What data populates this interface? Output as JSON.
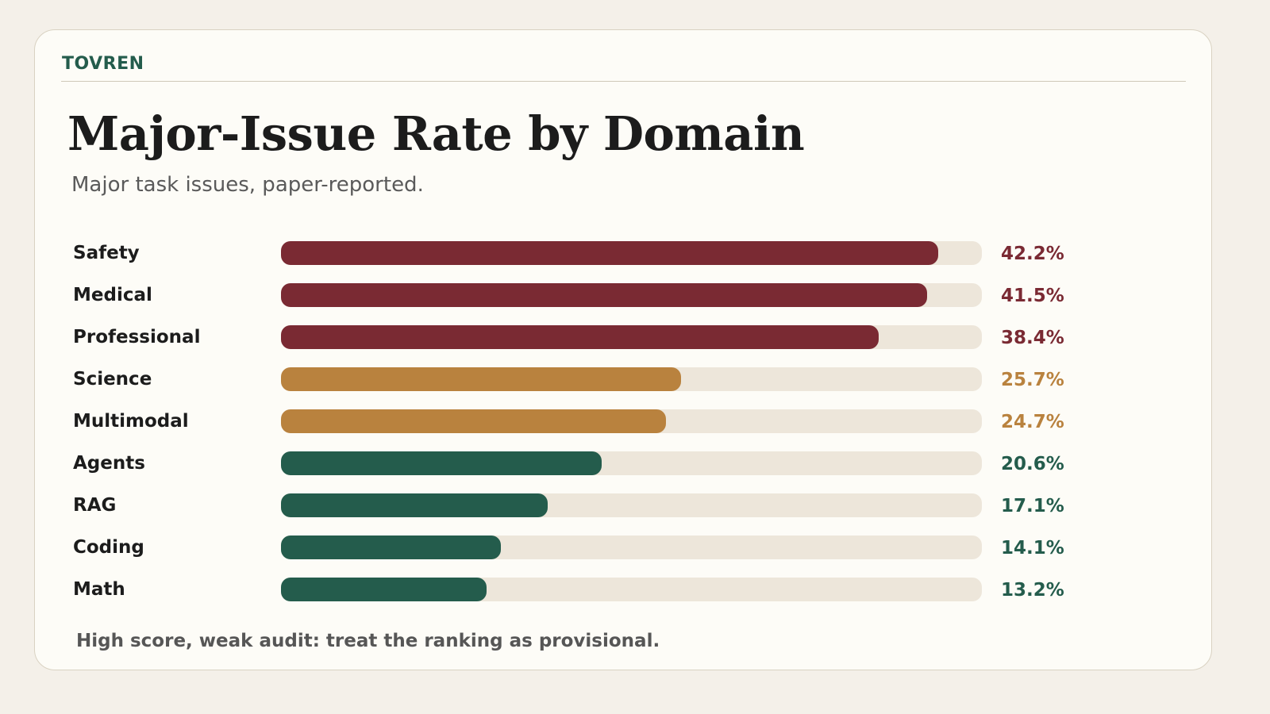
{
  "brand": "TOVREN",
  "footnote": "High score, weak audit: treat the ranking as provisional.",
  "colors": {
    "high": "#7a2a33",
    "mid": "#b9823e",
    "low": "#245c4c",
    "track": "#ede6da"
  },
  "chart_data": {
    "type": "bar",
    "orientation": "horizontal",
    "title": "Major-Issue Rate by Domain",
    "subtitle": "Major task issues, paper-reported.",
    "xlim": [
      0,
      45
    ],
    "grid": false,
    "unit": "%",
    "categories": [
      "Safety",
      "Medical",
      "Professional",
      "Science",
      "Multimodal",
      "Agents",
      "RAG",
      "Coding",
      "Math"
    ],
    "values": [
      42.2,
      41.5,
      38.4,
      25.7,
      24.7,
      20.6,
      17.1,
      14.1,
      13.2
    ],
    "labels": [
      "42.2%",
      "41.5%",
      "38.4%",
      "25.7%",
      "24.7%",
      "20.6%",
      "17.1%",
      "14.1%",
      "13.2%"
    ],
    "tiers": [
      "high",
      "high",
      "high",
      "mid",
      "mid",
      "low",
      "low",
      "low",
      "low"
    ]
  }
}
